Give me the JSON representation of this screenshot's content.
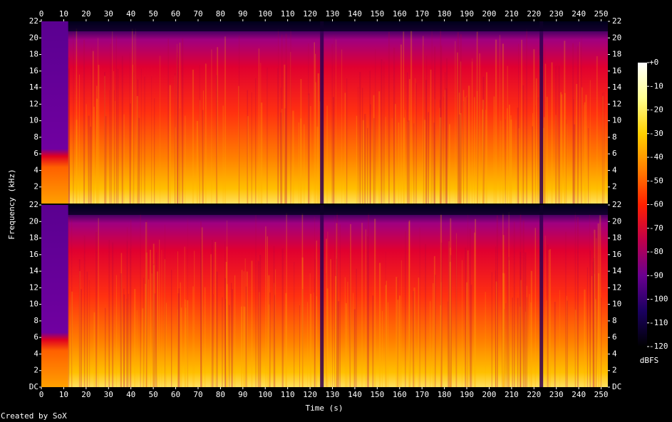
{
  "chart_data": {
    "type": "spectrogram",
    "x_label": "Time (s)",
    "y_label": "Frequency (kHz)",
    "colorbar_label": "dBFS",
    "credit": "Created by SoX",
    "xlim": [
      0,
      253
    ],
    "xticks": [
      0,
      10,
      20,
      30,
      40,
      50,
      60,
      70,
      80,
      90,
      100,
      110,
      120,
      130,
      140,
      150,
      160,
      170,
      180,
      190,
      200,
      210,
      220,
      230,
      240,
      250
    ],
    "ylim": [
      0,
      22
    ],
    "panels": [
      {
        "yticks": [
          2,
          4,
          6,
          8,
          10,
          12,
          14,
          16,
          18,
          20,
          22
        ]
      },
      {
        "yticks": [
          {
            "value": 0,
            "label": "DC"
          },
          2,
          4,
          6,
          8,
          10,
          12,
          14,
          16,
          18,
          20,
          22
        ]
      }
    ],
    "zlim": [
      -120,
      0
    ],
    "zticks": [
      {
        "value": 0,
        "label": "+0"
      },
      -10,
      -20,
      -30,
      -40,
      -50,
      -60,
      -70,
      -80,
      -90,
      -100,
      -110,
      -120
    ],
    "colormap": [
      "#000000",
      "#1a0060",
      "#6a0090",
      "#c0004a",
      "#ff2000",
      "#ff8000",
      "#ffd000",
      "#ffff90",
      "#ffffff"
    ]
  }
}
